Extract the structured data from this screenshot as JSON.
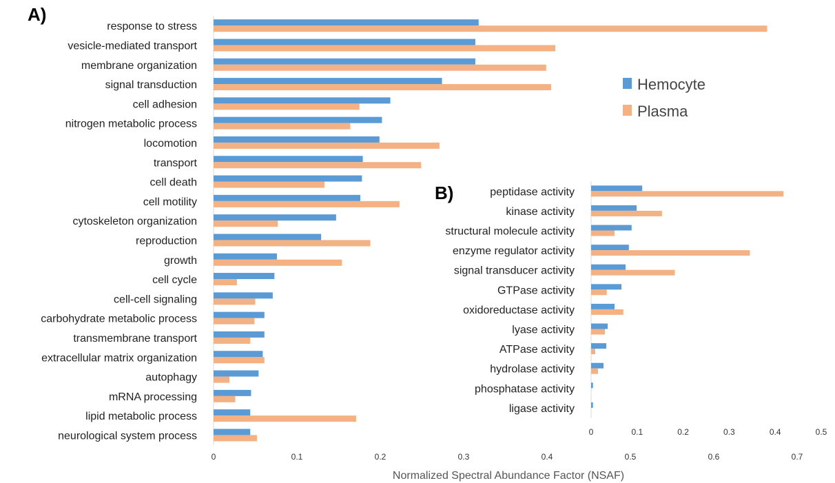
{
  "colors": {
    "hemocyte": "#5b9bd5",
    "plasma": "#f4b183",
    "axis": "#d9d9d9"
  },
  "chart_data": [
    {
      "panel": "A)",
      "type": "bar",
      "orientation": "horizontal",
      "categories": [
        "response to stress",
        "vesicle-mediated transport",
        "membrane organization",
        "signal transduction",
        "cell adhesion",
        "nitrogen metabolic process",
        "locomotion",
        "transport",
        "cell death",
        "cell motility",
        "cytoskeleton organization",
        "reproduction",
        "growth",
        "cell cycle",
        "cell-cell signaling",
        "carbohydrate metabolic process",
        "transmembrane transport",
        "extracellular matrix organization",
        "autophagy",
        "mRNA processing",
        "lipid metabolic process",
        "neurological system process"
      ],
      "series": [
        {
          "name": "Hemocyte",
          "values": [
            0.318,
            0.314,
            0.314,
            0.274,
            0.212,
            0.202,
            0.199,
            0.179,
            0.178,
            0.176,
            0.147,
            0.129,
            0.076,
            0.073,
            0.071,
            0.061,
            0.061,
            0.059,
            0.054,
            0.045,
            0.044,
            0.044
          ]
        },
        {
          "name": "Plasma",
          "values": [
            0.664,
            0.41,
            0.399,
            0.405,
            0.175,
            0.164,
            0.271,
            0.249,
            0.133,
            0.223,
            0.077,
            0.188,
            0.154,
            0.028,
            0.05,
            0.049,
            0.044,
            0.061,
            0.019,
            0.026,
            0.171,
            0.052
          ]
        }
      ],
      "xlim": [
        0,
        0.7
      ],
      "xticks": [
        "0",
        "0.1",
        "0.2",
        "0.3",
        "0.4",
        "0.5",
        "0.6",
        "0.7"
      ],
      "xlabel": "Normalized Spectral Abundance Factor (NSAF)"
    },
    {
      "panel": "B)",
      "type": "bar",
      "orientation": "horizontal",
      "categories": [
        "peptidase activity",
        "kinase activity",
        "structural molecule activity",
        "enzyme regulator activity",
        "signal transducer activity",
        "GTPase activity",
        "oxidoreductase activity",
        "lyase activity",
        "ATPase activity",
        "hydrolase activity",
        "phosphatase activity",
        "ligase activity"
      ],
      "series": [
        {
          "name": "Hemocyte",
          "values": [
            0.111,
            0.099,
            0.088,
            0.082,
            0.075,
            0.066,
            0.051,
            0.036,
            0.033,
            0.027,
            0.004,
            0.004
          ]
        },
        {
          "name": "Plasma",
          "values": [
            0.418,
            0.154,
            0.051,
            0.345,
            0.182,
            0.034,
            0.07,
            0.03,
            0.009,
            0.015,
            0.0,
            0.0
          ]
        }
      ],
      "xlim": [
        0,
        0.5
      ],
      "xticks": [
        "0",
        "0.1",
        "0.2",
        "0.3",
        "0.4",
        "0.5"
      ]
    }
  ],
  "legend": {
    "items": [
      "Hemocyte",
      "Plasma"
    ],
    "position": "upper-right"
  }
}
